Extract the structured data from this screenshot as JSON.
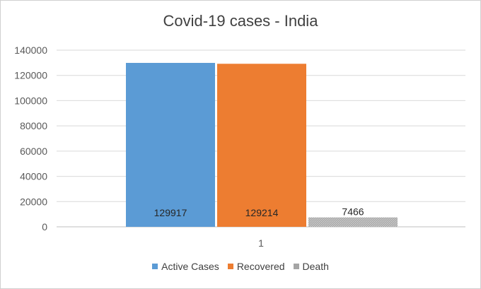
{
  "chart_data": {
    "type": "bar",
    "title": "Covid-19 cases - India",
    "categories": [
      "1"
    ],
    "series": [
      {
        "name": "Active Cases",
        "values": [
          129917
        ],
        "color": "#5b9bd5",
        "pattern": "solid"
      },
      {
        "name": "Recovered",
        "values": [
          129214
        ],
        "color": "#ed7d31",
        "pattern": "solid"
      },
      {
        "name": "Death",
        "values": [
          7466
        ],
        "color": "#a5a5a5",
        "pattern": "hatched"
      }
    ],
    "data_labels": [
      "129917",
      "129214",
      "7466"
    ],
    "yticks": [
      "0",
      "20000",
      "40000",
      "60000",
      "80000",
      "100000",
      "120000",
      "140000"
    ],
    "ylim": [
      0,
      140000
    ],
    "xlabel": "",
    "ylabel": "",
    "grid": true,
    "legend_position": "bottom"
  }
}
